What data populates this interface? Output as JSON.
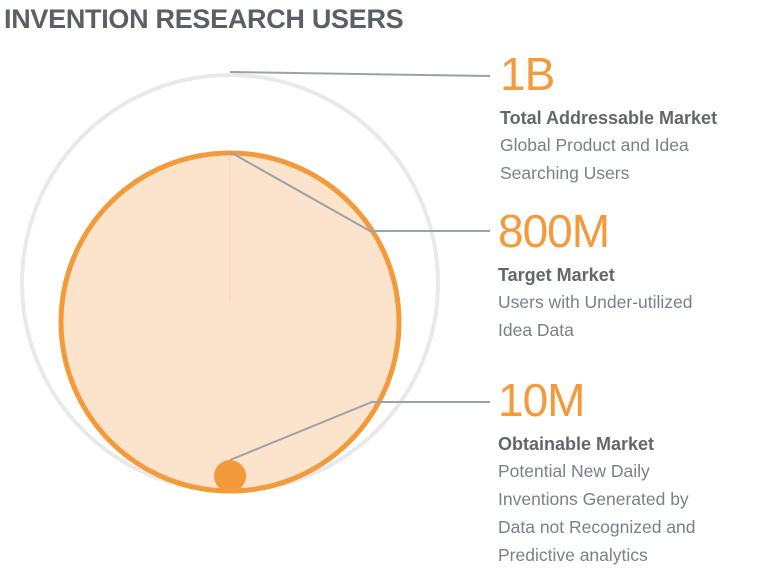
{
  "title": "INVENTION RESEARCH USERS",
  "colors": {
    "accent": "#F39A3B",
    "fill": "#FCE3CC",
    "outer_ring": "#E9E9E9",
    "connector": "#9CA2A8",
    "heading_text": "#5B6068",
    "body_text": "#7B8087"
  },
  "markets": [
    {
      "value": "1B",
      "label": "Total Addressable Market",
      "description": [
        "Global Product and Idea",
        "Searching Users"
      ]
    },
    {
      "value": "800M",
      "label": "Target Market",
      "description": [
        "Users with Under-utilized",
        "Idea Data"
      ]
    },
    {
      "value": "10M",
      "label": "Obtainable Market",
      "description": [
        "Potential New Daily",
        "Inventions Generated by",
        "Data not Recognized and",
        "Predictive analytics"
      ]
    }
  ]
}
